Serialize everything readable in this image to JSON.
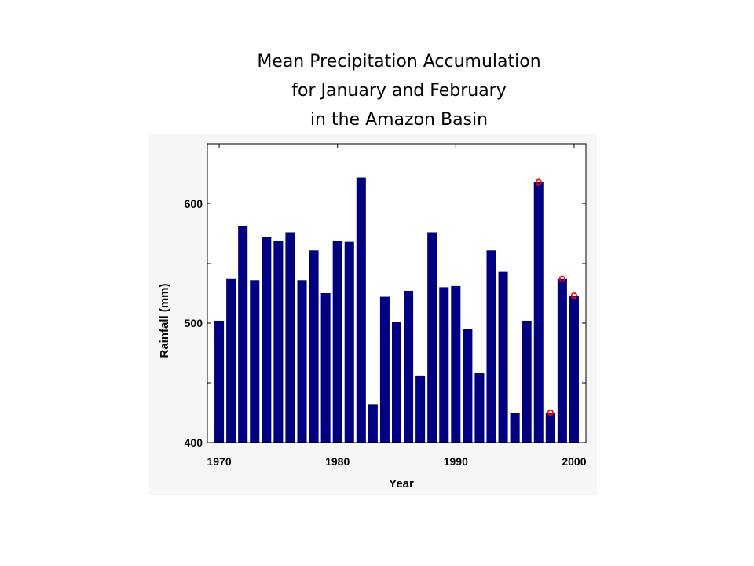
{
  "title_lines": [
    "Mean Precipitation Accumulation",
    "for January and February",
    "in the Amazon Basin"
  ],
  "chart_data": {
    "type": "bar",
    "title": "Mean Precipitation Accumulation for January and February in the Amazon Basin",
    "xlabel": "Year",
    "ylabel": "Rainfall (mm)",
    "x": [
      1970,
      1971,
      1972,
      1973,
      1974,
      1975,
      1976,
      1977,
      1978,
      1979,
      1980,
      1981,
      1982,
      1983,
      1984,
      1985,
      1986,
      1987,
      1988,
      1989,
      1990,
      1991,
      1992,
      1993,
      1994,
      1995,
      1996,
      1997,
      1998,
      1999,
      2000
    ],
    "values": [
      502,
      537,
      581,
      536,
      572,
      569,
      576,
      536,
      561,
      525,
      569,
      568,
      622,
      432,
      522,
      501,
      527,
      456,
      576,
      530,
      531,
      495,
      458,
      561,
      543,
      425,
      502,
      618,
      425,
      537,
      523
    ],
    "markers": [
      {
        "x": 1997,
        "y": 618
      },
      {
        "x": 1998,
        "y": 425
      },
      {
        "x": 1999,
        "y": 537
      },
      {
        "x": 2000,
        "y": 523
      }
    ],
    "xticks": [
      1970,
      1980,
      1990,
      2000
    ],
    "yticks": [
      400,
      500,
      600
    ],
    "xlim": [
      1969,
      2001
    ],
    "ylim": [
      400,
      650
    ],
    "grid": false,
    "colors": {
      "bar": "#000080",
      "marker": "#ff0000",
      "plot_bg": "#ffffff",
      "outer_bg": "#f6f6f6"
    }
  }
}
